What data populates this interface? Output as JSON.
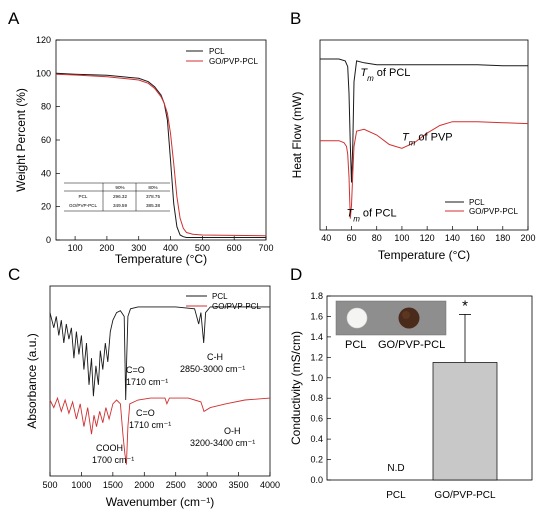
{
  "panels": [
    {
      "letter": "A"
    },
    {
      "letter": "B"
    },
    {
      "letter": "C"
    },
    {
      "letter": "D"
    }
  ],
  "colors": {
    "pcl": "#1a1a1a",
    "go": "#d03030",
    "bar": "#c8c8c8"
  },
  "chart_data": [
    {
      "id": "A",
      "type": "line",
      "xlabel": "Temperature (°C)",
      "ylabel": "Weight Percent (%)",
      "xlim": [
        40,
        700
      ],
      "ylim": [
        0,
        120
      ],
      "xticks": [
        100,
        200,
        300,
        400,
        500,
        600,
        700
      ],
      "yticks": [
        0,
        20,
        40,
        60,
        80,
        100,
        120
      ],
      "legend_position": "top-right",
      "series": [
        {
          "name": "PCL",
          "color_key": "pcl",
          "x": [
            40,
            100,
            200,
            300,
            330,
            350,
            370,
            380,
            390,
            400,
            410,
            420,
            430,
            440,
            450,
            700
          ],
          "y": [
            100,
            99.5,
            98.8,
            97,
            95,
            92,
            87,
            82,
            72,
            48,
            22,
            8,
            3,
            2,
            1.5,
            1.5
          ]
        },
        {
          "name": "GO/PVP-PCL",
          "color_key": "go",
          "x": [
            40,
            100,
            200,
            300,
            330,
            350,
            370,
            380,
            390,
            400,
            410,
            420,
            430,
            440,
            450,
            470,
            500,
            700
          ],
          "y": [
            99.5,
            99,
            98,
            96,
            94,
            91,
            86,
            82,
            76,
            64,
            46,
            26,
            13,
            7,
            4.5,
            3.5,
            3,
            2.5
          ]
        }
      ],
      "table": {
        "headers": [
          "",
          "90%",
          "80%"
        ],
        "rows": [
          [
            "PCL",
            "296.32",
            "378.75"
          ],
          [
            "GO/PVP-PCL",
            "349.59",
            "385.38"
          ]
        ]
      }
    },
    {
      "id": "B",
      "type": "line",
      "xlabel": "Temperature (°C)",
      "ylabel": "Heat Flow (mW)",
      "xlim": [
        35,
        200
      ],
      "xticks": [
        40,
        60,
        80,
        100,
        120,
        140,
        160,
        180,
        200
      ],
      "legend_position": "bottom-right",
      "annotations": [
        {
          "sub": "m",
          "rest": " of PCL",
          "x": 67,
          "yrel": 0.22
        },
        {
          "sub": "m",
          "rest": " of PVP",
          "x": 100,
          "yrel": 0.56
        },
        {
          "sub": "m",
          "rest": " of PCL",
          "x": 56,
          "yrel": 0.96
        }
      ],
      "series": [
        {
          "name": "PCL",
          "color_key": "pcl",
          "x": [
            35,
            40,
            45,
            50,
            55,
            57,
            58,
            59,
            60,
            61,
            62,
            64,
            70,
            80,
            100,
            120,
            140,
            160,
            180,
            200
          ],
          "y": [
            0.9,
            0.9,
            0.9,
            0.9,
            0.89,
            0.86,
            0.72,
            0.45,
            0.25,
            0.45,
            0.78,
            0.89,
            0.88,
            0.87,
            0.87,
            0.87,
            0.87,
            0.87,
            0.865,
            0.865
          ]
        },
        {
          "name": "GO/PVP-PCL",
          "color_key": "go",
          "x": [
            35,
            40,
            45,
            50,
            54,
            56,
            57,
            58,
            59,
            60,
            61,
            62,
            64,
            70,
            80,
            90,
            100,
            110,
            120,
            130,
            140,
            160,
            180,
            200
          ],
          "y": [
            0.47,
            0.47,
            0.47,
            0.47,
            0.46,
            0.44,
            0.4,
            0.28,
            0.06,
            0.13,
            0.3,
            0.44,
            0.52,
            0.53,
            0.5,
            0.45,
            0.43,
            0.46,
            0.51,
            0.55,
            0.57,
            0.57,
            0.565,
            0.56
          ]
        }
      ]
    },
    {
      "id": "C",
      "type": "line",
      "xlabel": "Wavenumber (cm⁻¹)",
      "ylabel": "Absorbance (a.u.)",
      "xlim": [
        500,
        4000
      ],
      "xticks": [
        500,
        1000,
        1500,
        2000,
        2500,
        3000,
        3500,
        4000
      ],
      "legend_position": "top-right",
      "annotations": [
        {
          "lines": [
            "C=O",
            "1710 cm⁻¹"
          ]
        },
        {
          "lines": [
            "C-H",
            "2850-3000 cm⁻¹"
          ]
        },
        {
          "lines": [
            "C=O",
            "1710 cm⁻¹"
          ]
        },
        {
          "lines": [
            "COOH",
            "1700 cm⁻¹"
          ]
        },
        {
          "lines": [
            "O-H",
            "3200-3400 cm⁻¹"
          ]
        }
      ],
      "series": [
        {
          "name": "PCL",
          "color_key": "pcl",
          "x": [
            500,
            560,
            600,
            640,
            680,
            720,
            760,
            800,
            840,
            880,
            920,
            960,
            1000,
            1040,
            1080,
            1120,
            1160,
            1190,
            1230,
            1270,
            1300,
            1340,
            1380,
            1420,
            1460,
            1500,
            1560,
            1620,
            1680,
            1705,
            1720,
            1740,
            1780,
            1900,
            2200,
            2500,
            2800,
            2865,
            2900,
            2945,
            2975,
            3050,
            3300,
            3700,
            4000
          ],
          "y": [
            0.86,
            0.78,
            0.84,
            0.74,
            0.82,
            0.7,
            0.8,
            0.72,
            0.78,
            0.62,
            0.76,
            0.64,
            0.74,
            0.56,
            0.7,
            0.48,
            0.62,
            0.42,
            0.58,
            0.48,
            0.66,
            0.56,
            0.7,
            0.6,
            0.76,
            0.82,
            0.86,
            0.87,
            0.84,
            0.4,
            0.62,
            0.84,
            0.88,
            0.89,
            0.89,
            0.89,
            0.88,
            0.8,
            0.86,
            0.7,
            0.86,
            0.89,
            0.89,
            0.89,
            0.89
          ]
        },
        {
          "name": "GO/PVP-PCL",
          "color_key": "go",
          "x": [
            500,
            560,
            620,
            680,
            740,
            800,
            860,
            920,
            980,
            1040,
            1100,
            1160,
            1200,
            1240,
            1290,
            1340,
            1390,
            1440,
            1500,
            1560,
            1620,
            1660,
            1690,
            1715,
            1740,
            1770,
            1900,
            2100,
            2330,
            2360,
            2400,
            2700,
            2900,
            2950,
            3050,
            3300,
            3600,
            4000
          ],
          "y": [
            0.4,
            0.36,
            0.41,
            0.34,
            0.4,
            0.33,
            0.39,
            0.3,
            0.38,
            0.26,
            0.36,
            0.22,
            0.32,
            0.26,
            0.34,
            0.28,
            0.36,
            0.3,
            0.38,
            0.4,
            0.38,
            0.22,
            0.12,
            0.06,
            0.26,
            0.38,
            0.4,
            0.41,
            0.41,
            0.38,
            0.41,
            0.41,
            0.39,
            0.34,
            0.36,
            0.38,
            0.4,
            0.41
          ]
        }
      ]
    },
    {
      "id": "D",
      "type": "bar",
      "ylabel": "Conductivity (mS/cm)",
      "ylim": [
        0,
        1.8
      ],
      "yticks": [
        0.0,
        0.2,
        0.4,
        0.6,
        0.8,
        1.0,
        1.2,
        1.4,
        1.6,
        1.8
      ],
      "categories": [
        "PCL",
        "GO/PVP-PCL"
      ],
      "values": [
        0,
        1.15
      ],
      "error_upper": [
        0,
        0.47
      ],
      "value_labels": [
        "N.D",
        ""
      ],
      "significance": [
        "",
        "*"
      ],
      "inset_labels": [
        "PCL",
        "GO/PVP-PCL"
      ]
    }
  ]
}
